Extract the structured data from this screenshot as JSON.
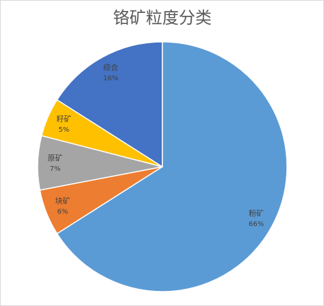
{
  "chart_data": {
    "type": "pie",
    "title": "铬矿粒度分类",
    "categories": [
      "粉矿",
      "块矿",
      "原矿",
      "籽矿",
      "综合"
    ],
    "values": [
      66,
      6,
      7,
      5,
      16
    ],
    "value_labels": [
      "66%",
      "6%",
      "7%",
      "5%",
      "16%"
    ],
    "colors": [
      "#5b9bd5",
      "#ed7d31",
      "#a5a5a5",
      "#ffc000",
      "#4472c4"
    ]
  }
}
